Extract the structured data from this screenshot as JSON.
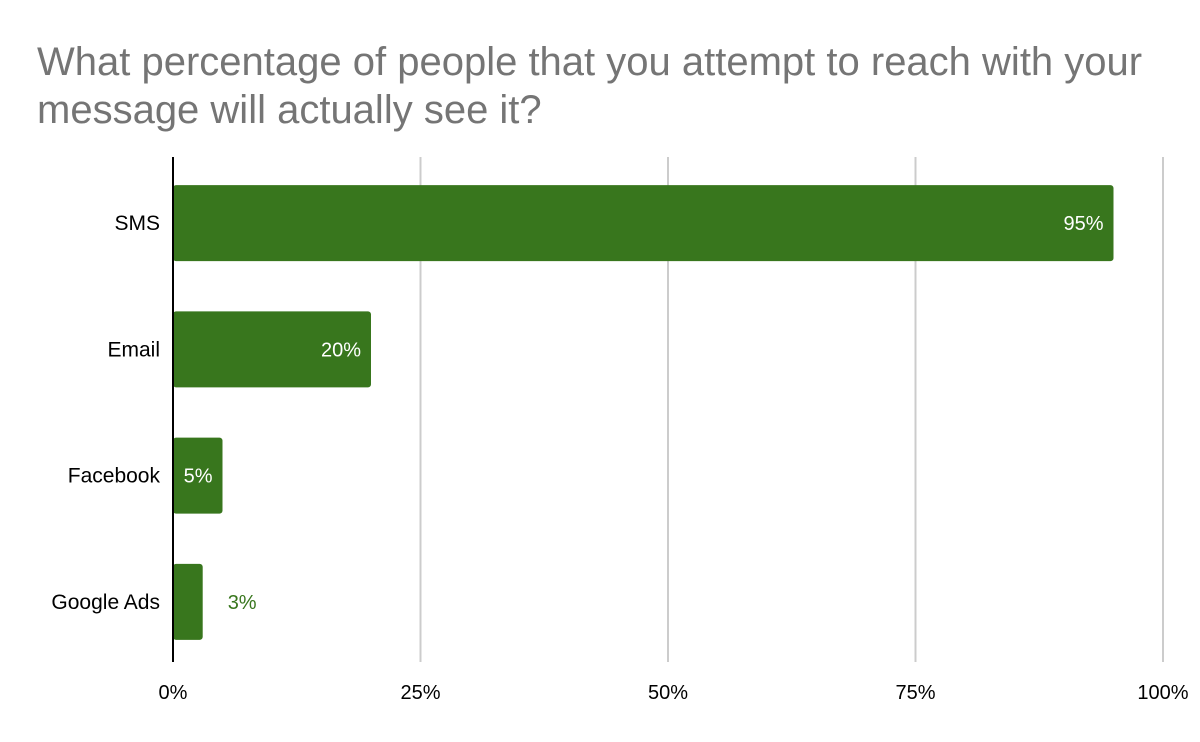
{
  "chart_data": {
    "type": "bar",
    "orientation": "horizontal",
    "title": "What percentage of people that you attempt to reach with your message will actually see it?",
    "categories": [
      "SMS",
      "Email",
      "Facebook",
      "Google Ads"
    ],
    "values": [
      95,
      20,
      5,
      3
    ],
    "data_labels": [
      "95%",
      "20%",
      "5%",
      "3%"
    ],
    "xlim": [
      0,
      100
    ],
    "x_ticks": [
      0,
      25,
      50,
      75,
      100
    ],
    "x_tick_labels": [
      "0%",
      "25%",
      "50%",
      "75%",
      "100%"
    ],
    "grid": true,
    "legend": "none",
    "colors": {
      "bar": "#38761d",
      "inside_label": "#ffffff",
      "outside_label": "#38761d",
      "category_label": "#000000",
      "tick_label": "#000000",
      "grid": "#cccccc",
      "axis": "#000000",
      "title": "#757575"
    }
  }
}
